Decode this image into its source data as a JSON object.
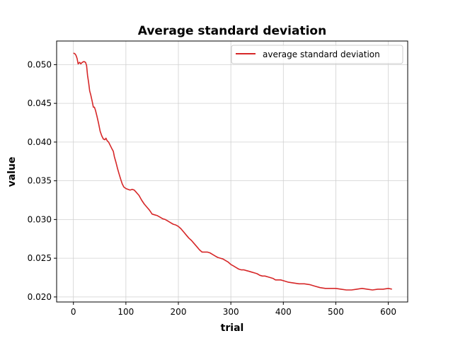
{
  "chart_data": {
    "type": "line",
    "title": "Average standard deviation",
    "xlabel": "trial",
    "ylabel": "value",
    "xlim": [
      -32,
      637
    ],
    "ylim": [
      0.01935,
      0.05305
    ],
    "x_ticks": [
      0,
      100,
      200,
      300,
      400,
      500,
      600
    ],
    "y_ticks": [
      0.02,
      0.025,
      0.03,
      0.035,
      0.04,
      0.045,
      0.05
    ],
    "x_tick_labels": [
      "0",
      "100",
      "200",
      "300",
      "400",
      "500",
      "600"
    ],
    "y_tick_labels": [
      "0.020",
      "0.025",
      "0.030",
      "0.035",
      "0.040",
      "0.045",
      "0.050"
    ],
    "grid": true,
    "legend_position": "top-right",
    "series": [
      {
        "name": "average standard deviation",
        "color": "#d62728",
        "points": [
          [
            0,
            0.0515
          ],
          [
            3,
            0.0514
          ],
          [
            5,
            0.0512
          ],
          [
            7,
            0.0508
          ],
          [
            9,
            0.0501
          ],
          [
            12,
            0.0503
          ],
          [
            14,
            0.0501
          ],
          [
            17,
            0.0503
          ],
          [
            20,
            0.0504
          ],
          [
            23,
            0.0503
          ],
          [
            25,
            0.0499
          ],
          [
            27,
            0.0486
          ],
          [
            29,
            0.0477
          ],
          [
            31,
            0.0466
          ],
          [
            33,
            0.0461
          ],
          [
            36,
            0.0452
          ],
          [
            38,
            0.0445
          ],
          [
            40,
            0.0445
          ],
          [
            42,
            0.0441
          ],
          [
            45,
            0.0433
          ],
          [
            48,
            0.0424
          ],
          [
            51,
            0.0414
          ],
          [
            54,
            0.0408
          ],
          [
            57,
            0.0404
          ],
          [
            60,
            0.0403
          ],
          [
            62,
            0.0405
          ],
          [
            64,
            0.0402
          ],
          [
            67,
            0.04
          ],
          [
            70,
            0.0396
          ],
          [
            73,
            0.0392
          ],
          [
            76,
            0.0388
          ],
          [
            78,
            0.0381
          ],
          [
            81,
            0.0374
          ],
          [
            84,
            0.0366
          ],
          [
            87,
            0.0359
          ],
          [
            90,
            0.0352
          ],
          [
            93,
            0.0346
          ],
          [
            96,
            0.0342
          ],
          [
            100,
            0.034
          ],
          [
            104,
            0.0339
          ],
          [
            108,
            0.0338
          ],
          [
            112,
            0.0339
          ],
          [
            116,
            0.0338
          ],
          [
            120,
            0.0335
          ],
          [
            125,
            0.0331
          ],
          [
            130,
            0.0325
          ],
          [
            135,
            0.032
          ],
          [
            140,
            0.0316
          ],
          [
            145,
            0.0312
          ],
          [
            150,
            0.0307
          ],
          [
            155,
            0.0306
          ],
          [
            160,
            0.0305
          ],
          [
            165,
            0.0303
          ],
          [
            170,
            0.0301
          ],
          [
            175,
            0.03
          ],
          [
            180,
            0.0298
          ],
          [
            185,
            0.0296
          ],
          [
            190,
            0.0294
          ],
          [
            195,
            0.0293
          ],
          [
            200,
            0.0291
          ],
          [
            205,
            0.0288
          ],
          [
            210,
            0.0284
          ],
          [
            215,
            0.028
          ],
          [
            220,
            0.0276
          ],
          [
            225,
            0.0273
          ],
          [
            230,
            0.0269
          ],
          [
            235,
            0.0265
          ],
          [
            240,
            0.0261
          ],
          [
            245,
            0.0258
          ],
          [
            250,
            0.0258
          ],
          [
            255,
            0.0258
          ],
          [
            260,
            0.0257
          ],
          [
            265,
            0.0255
          ],
          [
            270,
            0.0253
          ],
          [
            275,
            0.0251
          ],
          [
            280,
            0.025
          ],
          [
            285,
            0.0249
          ],
          [
            290,
            0.0247
          ],
          [
            295,
            0.0245
          ],
          [
            300,
            0.0242
          ],
          [
            305,
            0.024
          ],
          [
            310,
            0.0238
          ],
          [
            315,
            0.0236
          ],
          [
            320,
            0.0235
          ],
          [
            325,
            0.0235
          ],
          [
            330,
            0.0234
          ],
          [
            335,
            0.0233
          ],
          [
            340,
            0.0232
          ],
          [
            345,
            0.0231
          ],
          [
            350,
            0.023
          ],
          [
            355,
            0.0228
          ],
          [
            360,
            0.0227
          ],
          [
            365,
            0.0227
          ],
          [
            370,
            0.0226
          ],
          [
            375,
            0.0225
          ],
          [
            380,
            0.0224
          ],
          [
            385,
            0.0222
          ],
          [
            390,
            0.0222
          ],
          [
            395,
            0.0222
          ],
          [
            400,
            0.0221
          ],
          [
            410,
            0.0219
          ],
          [
            420,
            0.0218
          ],
          [
            430,
            0.0217
          ],
          [
            440,
            0.0217
          ],
          [
            450,
            0.0216
          ],
          [
            460,
            0.0214
          ],
          [
            470,
            0.0212
          ],
          [
            480,
            0.0211
          ],
          [
            490,
            0.0211
          ],
          [
            500,
            0.0211
          ],
          [
            510,
            0.021
          ],
          [
            520,
            0.0209
          ],
          [
            530,
            0.0209
          ],
          [
            540,
            0.021
          ],
          [
            550,
            0.0211
          ],
          [
            560,
            0.021
          ],
          [
            570,
            0.0209
          ],
          [
            580,
            0.021
          ],
          [
            590,
            0.021
          ],
          [
            600,
            0.0211
          ],
          [
            607,
            0.021
          ]
        ]
      }
    ]
  }
}
